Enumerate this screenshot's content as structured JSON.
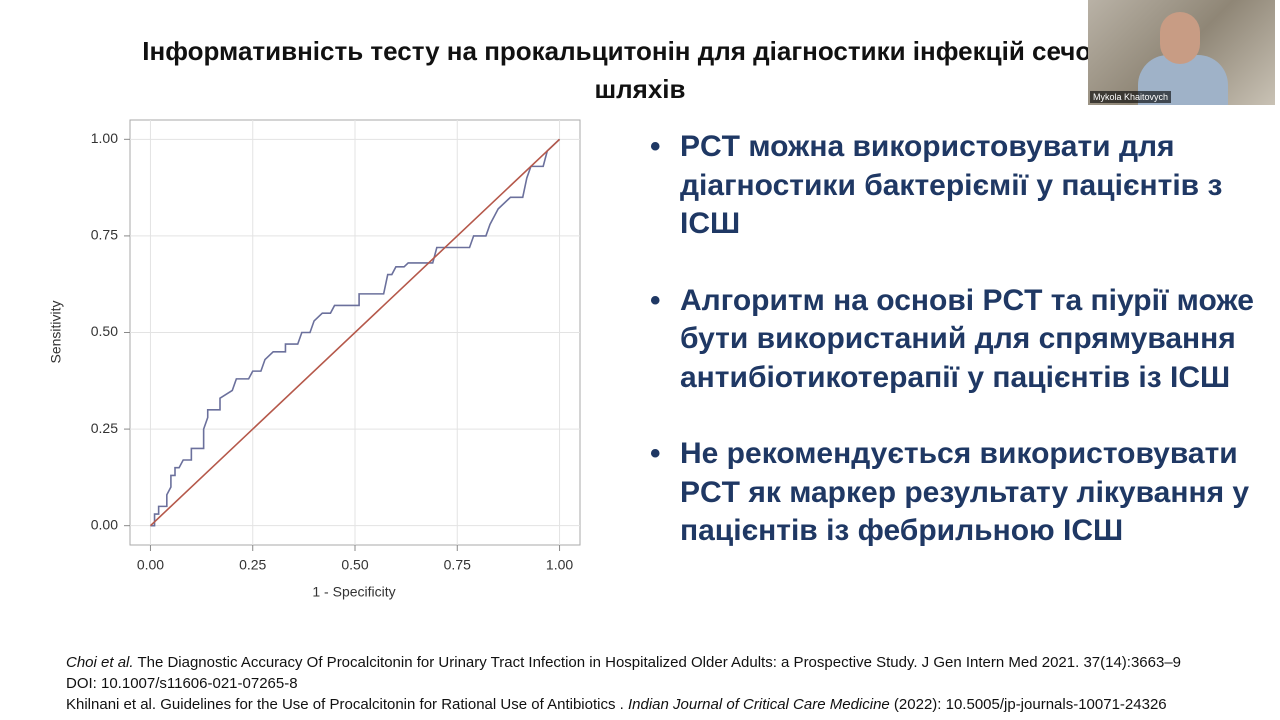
{
  "title": "Інформативність тесту на прокальцитонін для діагностики інфекцій сечових шляхів",
  "bullets": [
    "PCT можна використовувати для діагностики бактеріємії у пацієнтів з ІСШ",
    "Алгоритм на основі PCT та піурії може бути використаний для спрямування антибіотикотерапії у пацієнтів із ІСШ",
    "Не рекомендується використовувати PCT як маркер результату лікування у пацієнтів із фебрильною ІСШ"
  ],
  "references": [
    [
      "Choi et al.",
      " The Diagnostic Accuracy Of Procalcitonin for Urinary Tract Infection in Hospitalized Older Adults: a Prospective Study. J Gen Intern Med 2021. 37(14):3663–9 DOI: 10.1007/s11606-021-07265-8"
    ],
    [
      "Khilnani et al. Guidelines for the Use of Procalcitonin for Rational Use of Antibiotics . ",
      "Indian Journal of Critical Care Medicine",
      " (2022): 10.5005/jp-journals-10071-24326"
    ]
  ],
  "participant": "Mykola Khaitovych",
  "chart_data": {
    "type": "line",
    "x_label": "1 - Specificity",
    "y_label": "Sensitivity",
    "xlim": [
      -0.05,
      1.05
    ],
    "ylim": [
      -0.05,
      1.05
    ],
    "grid": true,
    "xticks": [
      {
        "value": 0,
        "label": "0.00"
      },
      {
        "value": 0.25,
        "label": "0.25"
      },
      {
        "value": 0.5,
        "label": "0.50"
      },
      {
        "value": 0.75,
        "label": "0.75"
      },
      {
        "value": 1,
        "label": "1.00"
      }
    ],
    "yticks": [
      {
        "value": 0,
        "label": "0.00"
      },
      {
        "value": 0.25,
        "label": "0.25"
      },
      {
        "value": 0.5,
        "label": "0.50"
      },
      {
        "value": 0.75,
        "label": "0.75"
      },
      {
        "value": 1,
        "label": "1.00"
      }
    ],
    "series": [
      {
        "color": "#6b709c",
        "x": [
          0,
          0.01,
          0.01,
          0.02,
          0.02,
          0.04,
          0.04,
          0.05,
          0.05,
          0.06,
          0.06,
          0.07,
          0.08,
          0.1,
          0.1,
          0.13,
          0.13,
          0.14,
          0.14,
          0.17,
          0.17,
          0.2,
          0.21,
          0.24,
          0.25,
          0.27,
          0.28,
          0.3,
          0.33,
          0.33,
          0.36,
          0.37,
          0.39,
          0.4,
          0.42,
          0.44,
          0.45,
          0.51,
          0.51,
          0.57,
          0.58,
          0.59,
          0.6,
          0.62,
          0.63,
          0.69,
          0.7,
          0.78,
          0.79,
          0.82,
          0.83,
          0.84,
          0.85,
          0.88,
          0.91,
          0.92,
          0.93,
          0.96,
          0.97,
          1
        ],
        "values": [
          0,
          0,
          0.03,
          0.03,
          0.05,
          0.05,
          0.08,
          0.1,
          0.13,
          0.13,
          0.15,
          0.15,
          0.17,
          0.17,
          0.2,
          0.2,
          0.25,
          0.28,
          0.3,
          0.3,
          0.33,
          0.35,
          0.38,
          0.38,
          0.4,
          0.4,
          0.43,
          0.45,
          0.45,
          0.47,
          0.47,
          0.5,
          0.5,
          0.53,
          0.55,
          0.55,
          0.57,
          0.57,
          0.6,
          0.6,
          0.65,
          0.65,
          0.67,
          0.67,
          0.68,
          0.68,
          0.72,
          0.72,
          0.75,
          0.75,
          0.78,
          0.8,
          0.82,
          0.85,
          0.85,
          0.9,
          0.93,
          0.93,
          0.97,
          1
        ]
      },
      {
        "color": "#b5584a",
        "x": [
          0,
          1
        ],
        "values": [
          0,
          1
        ]
      }
    ]
  }
}
